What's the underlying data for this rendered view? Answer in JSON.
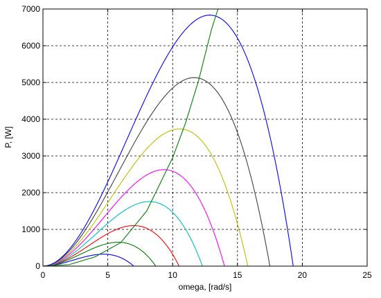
{
  "chart_data": {
    "type": "line",
    "title": "",
    "xlabel": "omega, [rad/s]",
    "ylabel": "P, [W]",
    "xlim": [
      0,
      25
    ],
    "ylim": [
      0,
      7000
    ],
    "xticks": [
      0,
      5,
      10,
      15,
      20,
      25
    ],
    "yticks": [
      0,
      1000,
      2000,
      3000,
      4000,
      5000,
      6000,
      7000
    ],
    "xtick_labels": [
      "0",
      "5",
      "10",
      "15",
      "20",
      "25"
    ],
    "ytick_labels": [
      "0",
      "1000",
      "2000",
      "3000",
      "4000",
      "5000",
      "6000",
      "7000"
    ],
    "grid": true,
    "grid_style": "dashed",
    "curve_shape": "cubic-in-speed",
    "series": [
      {
        "color": "#0000ff",
        "peak_x": 5.0,
        "peak_y": 320,
        "end_x": 7.0
      },
      {
        "color": "#008000",
        "peak_x": 6.2,
        "peak_y": 640,
        "end_x": 8.7
      },
      {
        "color": "#ff0000",
        "peak_x": 7.2,
        "peak_y": 1100,
        "end_x": 10.5
      },
      {
        "color": "#00bfbf",
        "peak_x": 8.5,
        "peak_y": 1750,
        "end_x": 12.3
      },
      {
        "color": "#ff00ff",
        "peak_x": 9.6,
        "peak_y": 2620,
        "end_x": 14.0
      },
      {
        "color": "#bfbf00",
        "peak_x": 10.8,
        "peak_y": 3730,
        "end_x": 15.8
      },
      {
        "color": "#404040",
        "peak_x": 12.2,
        "peak_y": 5100,
        "end_x": 17.5
      },
      {
        "color": "#0000ff",
        "peak_x": 13.2,
        "peak_y": 6820,
        "end_x": 19.3
      }
    ],
    "mpp_locus": {
      "color": "#008000",
      "x": [
        0,
        2,
        4,
        6,
        8,
        10,
        11,
        12,
        13,
        13.5
      ],
      "y": [
        0,
        40,
        250,
        640,
        1500,
        2950,
        3900,
        5050,
        6450,
        7000
      ]
    }
  }
}
